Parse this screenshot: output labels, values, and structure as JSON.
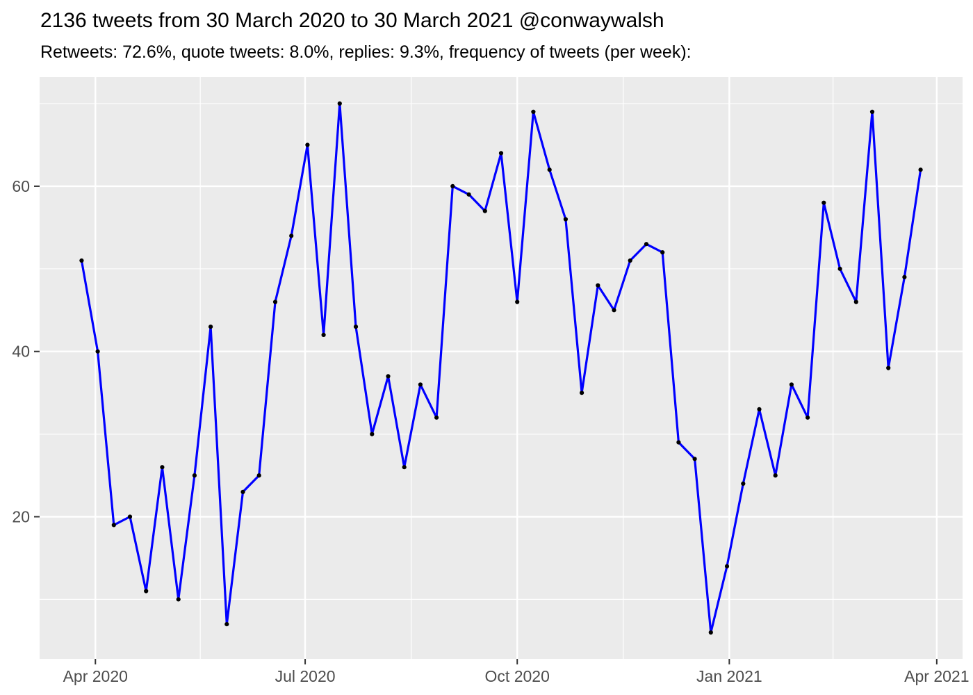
{
  "title": "2136 tweets from 30 March 2020 to 30 March 2021 @conwaywalsh",
  "subtitle": "Retweets: 72.6%, quote tweets: 8.0%, replies: 9.3%, frequency of tweets (per week):",
  "chart_data": {
    "type": "line",
    "series_name": "frequency of tweets per week",
    "x_start_date": "2020-03-30",
    "x_end_date": "2021-03-29",
    "x_interval_days": 7,
    "values": [
      51,
      40,
      19,
      20,
      11,
      26,
      10,
      25,
      43,
      7,
      23,
      25,
      46,
      54,
      65,
      42,
      70,
      43,
      30,
      37,
      26,
      36,
      32,
      60,
      59,
      57,
      64,
      46,
      69,
      62,
      56,
      35,
      48,
      45,
      51,
      53,
      52,
      29,
      27,
      6,
      14,
      24,
      33,
      25,
      36,
      32,
      58,
      50,
      46,
      69,
      38,
      49,
      62
    ],
    "x_ticks": [
      {
        "label": "Apr 2020",
        "day": 6
      },
      {
        "label": "Jul 2020",
        "day": 97
      },
      {
        "label": "Oct 2020",
        "day": 189
      },
      {
        "label": "Jan 2021",
        "day": 281
      },
      {
        "label": "Apr 2021",
        "day": 371
      }
    ],
    "x_minor_days": [
      51.5,
      143,
      235,
      326
    ],
    "y_ticks": [
      20,
      40,
      60
    ],
    "y_minor_ticks": [
      10,
      30,
      50,
      70
    ],
    "x_domain_days": [
      -18.2,
      382.2
    ],
    "y_domain": [
      2.8,
      73.2
    ],
    "grid": true,
    "legend_position": "none",
    "colors": {
      "line": "#0000FF",
      "point": "#000000",
      "panel_background": "#EBEBEB",
      "gridline": "#FFFFFF",
      "axis_text": "#4D4D4D",
      "tick_mark": "#333333",
      "title_text": "#000000"
    }
  }
}
